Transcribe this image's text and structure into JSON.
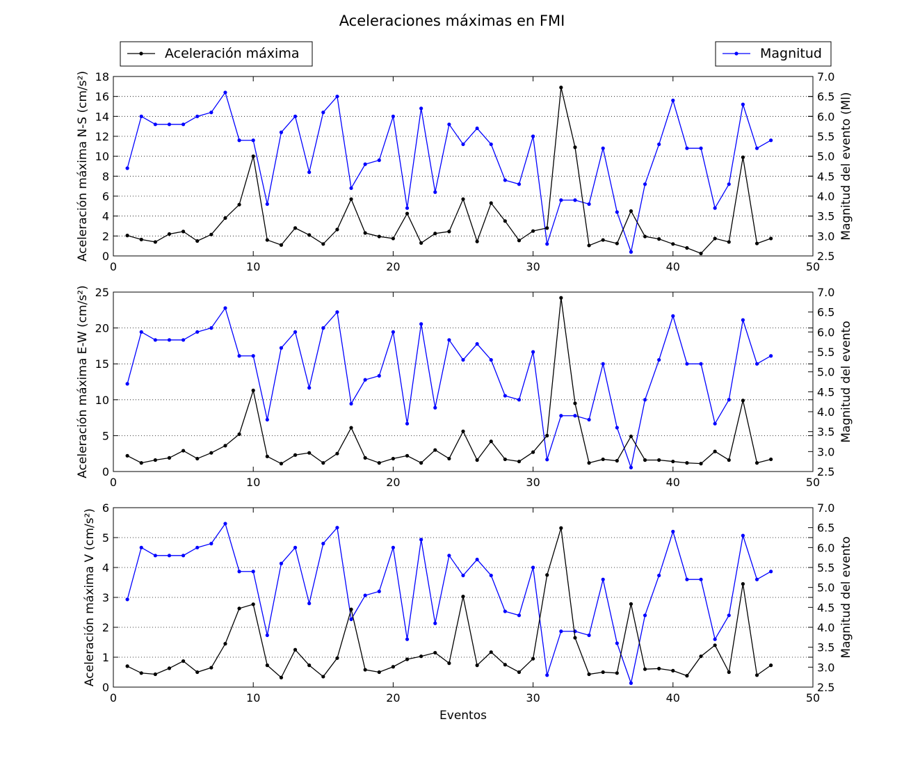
{
  "chart_data": {
    "type": "line",
    "title": "Aceleraciones máximas en FMI",
    "xlabel": "Eventos",
    "xlim": [
      0,
      50
    ],
    "xticks": [
      0,
      10,
      20,
      30,
      40,
      50
    ],
    "legend": {
      "left": "Aceleración máxima",
      "right": "Magnitud",
      "placement_left": "top-left",
      "placement_right": "top-right"
    },
    "colors": {
      "acceleration": "#000000",
      "magnitude": "#0000ff"
    },
    "events": [
      1,
      2,
      3,
      4,
      5,
      6,
      7,
      8,
      9,
      10,
      11,
      12,
      13,
      14,
      15,
      16,
      17,
      18,
      19,
      20,
      21,
      22,
      23,
      24,
      25,
      26,
      27,
      28,
      29,
      30,
      31,
      32,
      33,
      34,
      35,
      36,
      37,
      38,
      39,
      40,
      41,
      42,
      43,
      44,
      45,
      46,
      47
    ],
    "magnitude": [
      4.7,
      6.0,
      5.8,
      5.8,
      5.8,
      6.0,
      6.1,
      6.6,
      5.4,
      5.4,
      3.8,
      5.6,
      6.0,
      4.6,
      6.1,
      6.5,
      4.2,
      4.8,
      4.9,
      6.0,
      3.7,
      6.2,
      4.1,
      5.8,
      5.3,
      5.7,
      5.3,
      4.4,
      4.3,
      5.5,
      2.8,
      3.9,
      3.9,
      3.8,
      5.2,
      3.6,
      2.6,
      4.3,
      5.3,
      6.4,
      5.2,
      5.2,
      3.7,
      4.3,
      6.3,
      5.2,
      5.4
    ],
    "subplots": [
      {
        "ylabel_left": "Aceleración máxima N-S (cm/s²)",
        "ylabel_right": "Magnitud del evento (Ml)",
        "ylim": [
          0,
          18
        ],
        "yticks": [
          0,
          2,
          4,
          6,
          8,
          10,
          12,
          14,
          16,
          18
        ],
        "y2lim": [
          2.5,
          7.0
        ],
        "y2ticks": [
          2.5,
          3.0,
          3.5,
          4.0,
          4.5,
          5.0,
          5.5,
          6.0,
          6.5,
          7.0
        ],
        "acceleration": [
          2.05,
          1.65,
          1.4,
          2.2,
          2.45,
          1.5,
          2.15,
          3.8,
          5.15,
          10.0,
          1.6,
          1.1,
          2.8,
          2.1,
          1.2,
          2.65,
          5.7,
          2.3,
          1.95,
          1.75,
          4.25,
          1.3,
          2.25,
          2.45,
          5.7,
          1.45,
          5.3,
          3.5,
          1.55,
          2.5,
          2.8,
          16.9,
          10.9,
          1.05,
          1.6,
          1.25,
          4.5,
          1.95,
          1.7,
          1.2,
          0.8,
          0.25,
          1.75,
          1.4,
          9.9,
          1.25,
          1.75
        ]
      },
      {
        "ylabel_left": "Aceleración máxima E-W (cm/s²)",
        "ylabel_right": "Magnitud del evento",
        "ylim": [
          0,
          25
        ],
        "yticks": [
          0,
          5,
          10,
          15,
          20,
          25
        ],
        "y2lim": [
          2.5,
          7.0
        ],
        "y2ticks": [
          2.5,
          3.0,
          3.5,
          4.0,
          4.5,
          5.0,
          5.5,
          6.0,
          6.5,
          7.0
        ],
        "acceleration": [
          2.2,
          1.2,
          1.6,
          1.9,
          2.9,
          1.8,
          2.6,
          3.6,
          5.2,
          11.3,
          2.1,
          1.1,
          2.3,
          2.6,
          1.2,
          2.5,
          6.1,
          1.9,
          1.2,
          1.8,
          2.2,
          1.2,
          3.0,
          1.8,
          5.6,
          1.6,
          4.2,
          1.7,
          1.4,
          2.7,
          5.0,
          24.2,
          9.5,
          1.2,
          1.7,
          1.5,
          4.9,
          1.6,
          1.6,
          1.4,
          1.2,
          1.1,
          2.8,
          1.6,
          9.9,
          1.2,
          1.7
        ]
      },
      {
        "ylabel_left": "Aceleración máxima V (cm/s²)",
        "ylabel_right": "Magnitud del evento",
        "ylim": [
          0,
          6
        ],
        "yticks": [
          0,
          1,
          2,
          3,
          4,
          5,
          6
        ],
        "y2lim": [
          2.5,
          7.0
        ],
        "y2ticks": [
          2.5,
          3.0,
          3.5,
          4.0,
          4.5,
          5.0,
          5.5,
          6.0,
          6.5,
          7.0
        ],
        "acceleration": [
          0.7,
          0.47,
          0.43,
          0.63,
          0.87,
          0.5,
          0.65,
          1.45,
          2.63,
          2.77,
          0.73,
          0.32,
          1.25,
          0.73,
          0.35,
          0.97,
          2.6,
          0.58,
          0.5,
          0.68,
          0.93,
          1.03,
          1.15,
          0.8,
          3.03,
          0.73,
          1.17,
          0.75,
          0.5,
          0.95,
          3.75,
          5.32,
          1.65,
          0.43,
          0.5,
          0.47,
          2.78,
          0.6,
          0.62,
          0.55,
          0.38,
          1.03,
          1.4,
          0.5,
          3.45,
          0.4,
          0.73
        ]
      }
    ]
  }
}
